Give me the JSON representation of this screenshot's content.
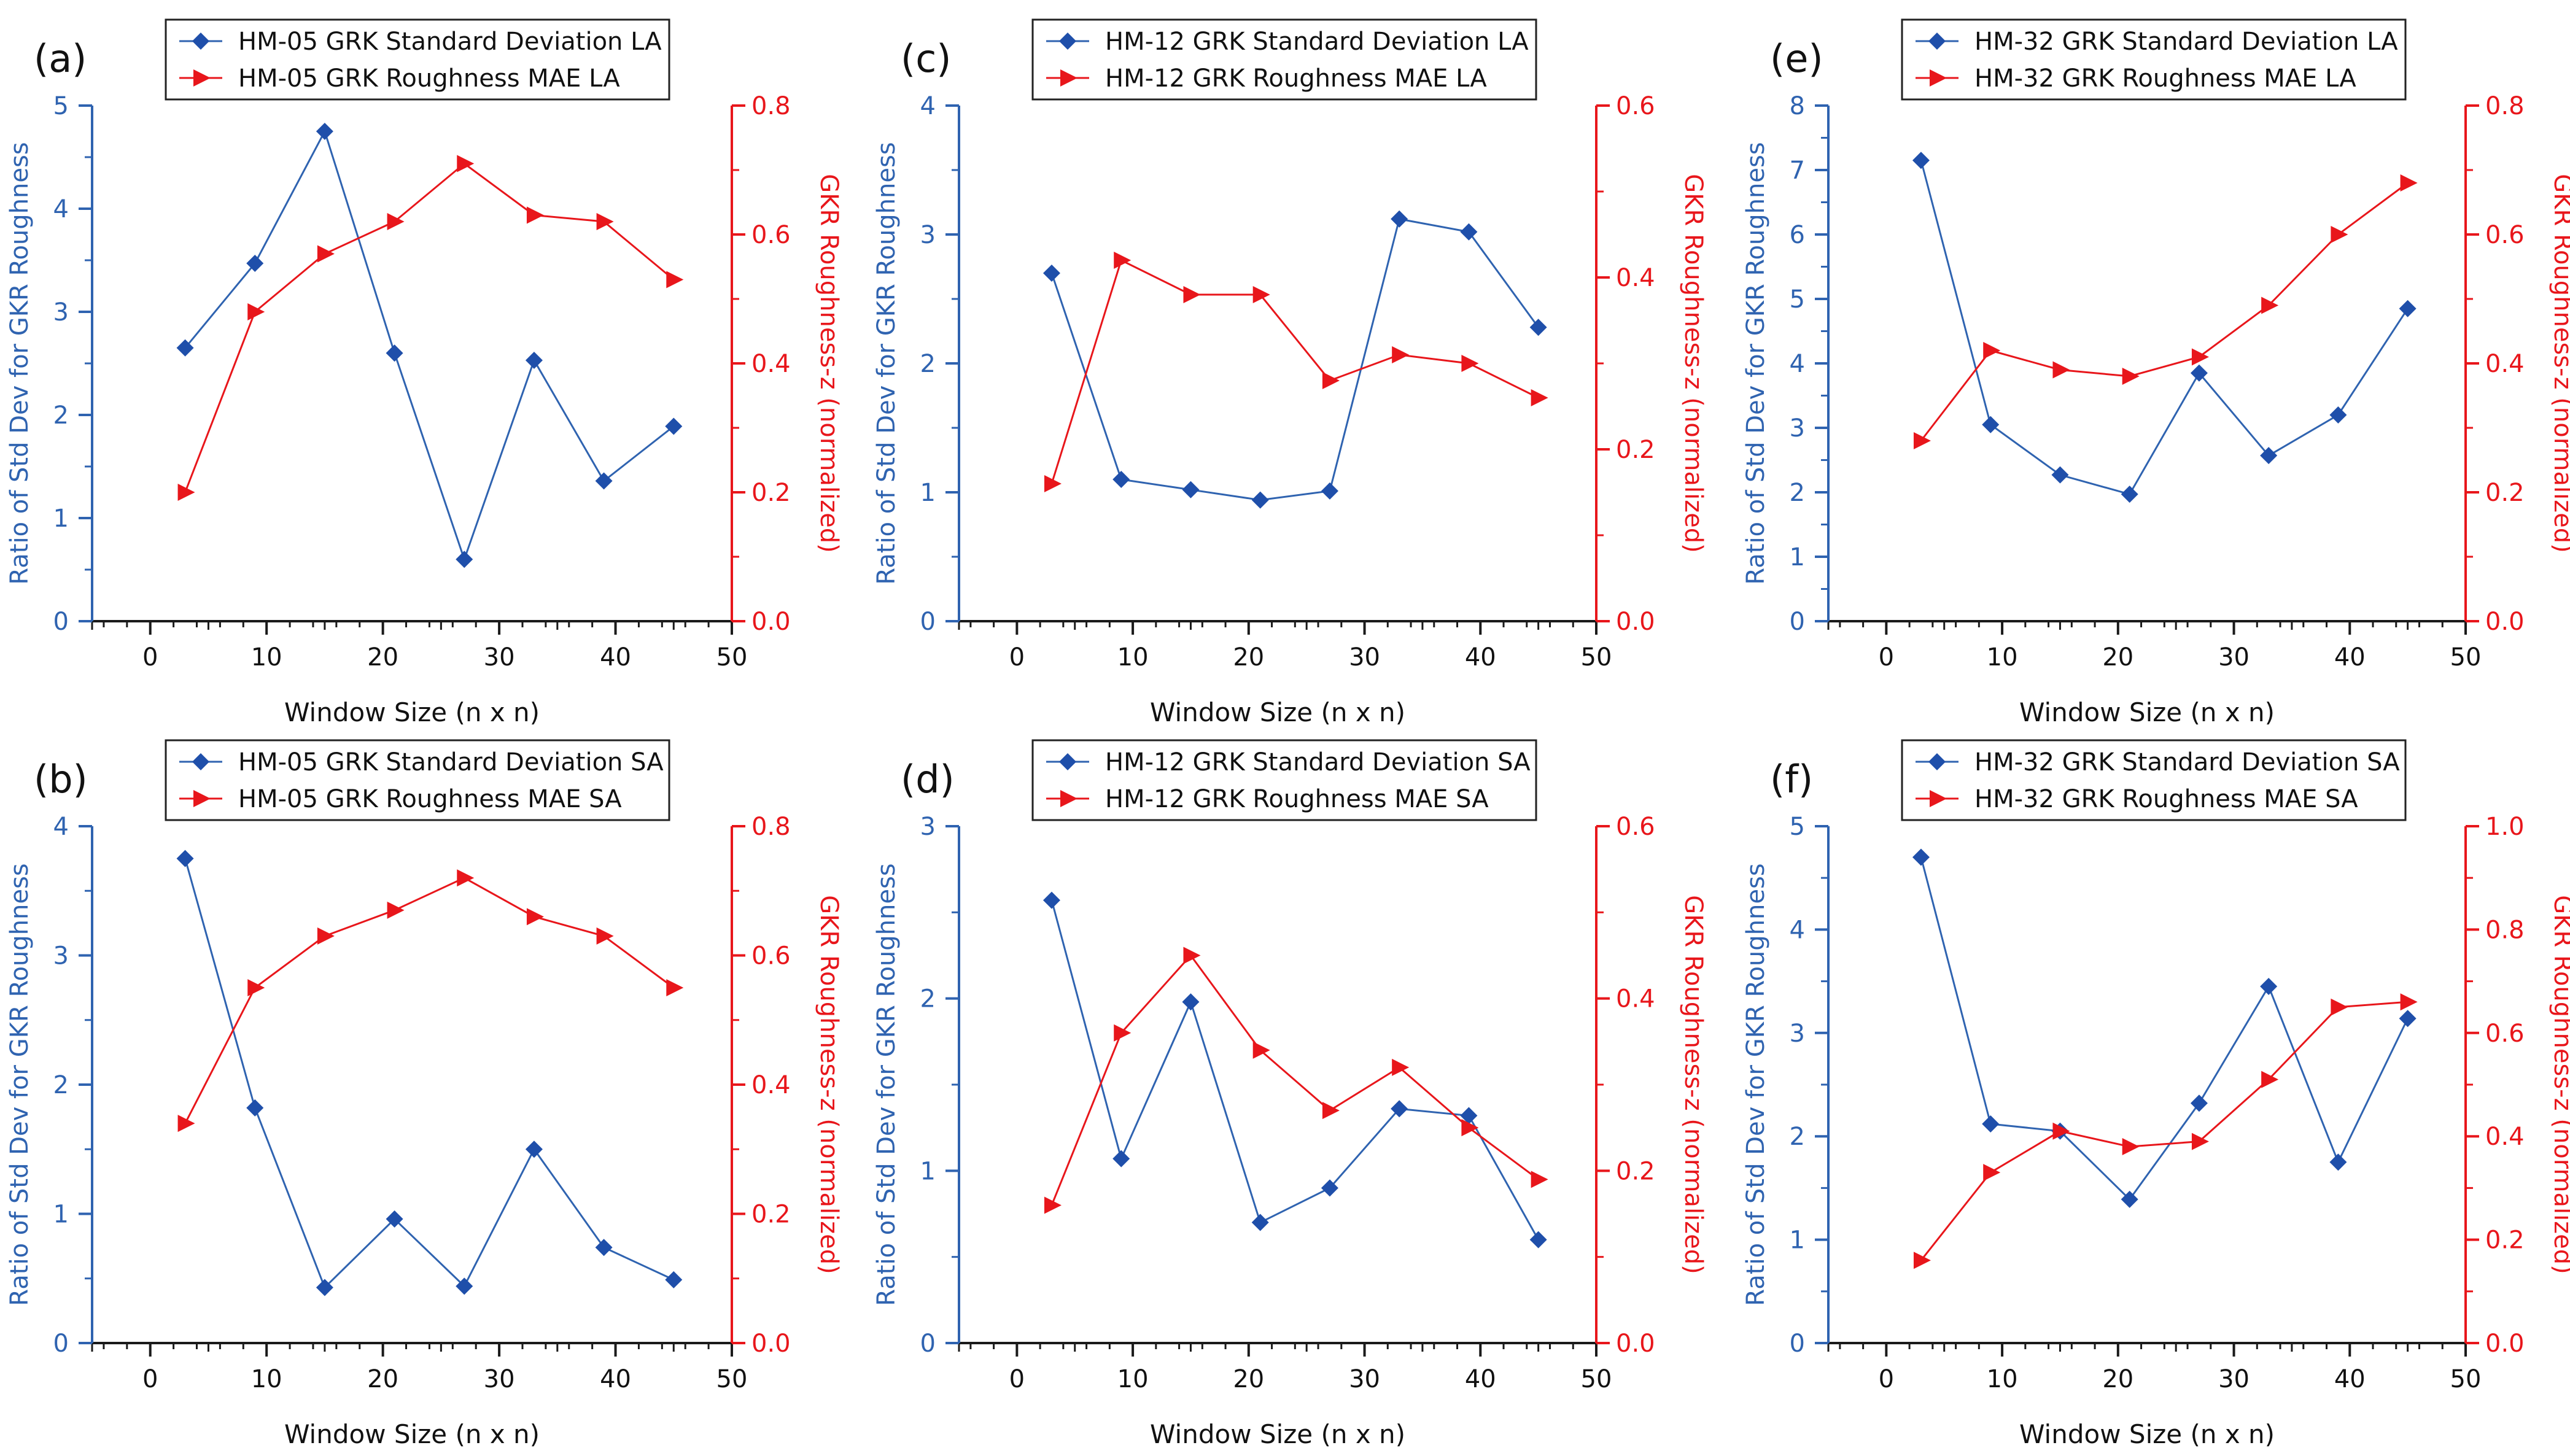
{
  "colors": {
    "left": "#2F63B0",
    "right": "#E8161B",
    "axis": "#1a1a1a",
    "marker_left": "#1F4FAA"
  },
  "chart_data": [
    {
      "id": "a",
      "type": "line",
      "panel_label": "(a)",
      "xlabel": "Window Size (n x n)",
      "xlim": [
        -5,
        50
      ],
      "xticks": [
        0,
        10,
        20,
        30,
        40,
        50
      ],
      "ylabel_left": "Ratio of Std Dev for GKR Roughness",
      "ylim_left": [
        0,
        5
      ],
      "yticks_left": [
        0,
        1,
        2,
        3,
        4,
        5
      ],
      "ylabel_right": "GKR Roughness-z (normalized)",
      "ylim_right": [
        0,
        0.8
      ],
      "yticks_right": [
        "0.0",
        "0.2",
        "0.4",
        "0.6",
        "0.8"
      ],
      "x": [
        3,
        9,
        15,
        21,
        27,
        33,
        39,
        45
      ],
      "series": [
        {
          "name": "HM-05 GRK Standard Deviation LA",
          "axis": "left",
          "marker": "diamond",
          "values": [
            2.65,
            3.47,
            4.75,
            2.6,
            0.6,
            2.53,
            1.36,
            1.89
          ]
        },
        {
          "name": "HM-05 GRK Roughness MAE LA",
          "axis": "right",
          "marker": "triangle",
          "values": [
            0.2,
            0.48,
            0.57,
            0.62,
            0.71,
            0.63,
            0.62,
            0.53
          ]
        }
      ]
    },
    {
      "id": "b",
      "type": "line",
      "panel_label": "(b)",
      "xlabel": "Window Size (n x n)",
      "xlim": [
        -5,
        50
      ],
      "xticks": [
        0,
        10,
        20,
        30,
        40,
        50
      ],
      "ylabel_left": "Ratio of Std Dev for GKR Roughness",
      "ylim_left": [
        0,
        4
      ],
      "yticks_left": [
        0,
        1,
        2,
        3,
        4
      ],
      "ylabel_right": "GKR Roughness-z (normalized)",
      "ylim_right": [
        0,
        0.8
      ],
      "yticks_right": [
        "0.0",
        "0.2",
        "0.4",
        "0.6",
        "0.8"
      ],
      "x": [
        3,
        9,
        15,
        21,
        27,
        33,
        39,
        45
      ],
      "series": [
        {
          "name": "HM-05 GRK Standard Deviation SA",
          "axis": "left",
          "marker": "diamond",
          "values": [
            3.75,
            1.82,
            0.43,
            0.96,
            0.44,
            1.5,
            0.74,
            0.49
          ]
        },
        {
          "name": "HM-05 GRK Roughness MAE SA",
          "axis": "right",
          "marker": "triangle",
          "values": [
            0.34,
            0.55,
            0.63,
            0.67,
            0.72,
            0.66,
            0.63,
            0.55
          ]
        }
      ]
    },
    {
      "id": "c",
      "type": "line",
      "panel_label": "(c)",
      "xlabel": "Window Size (n x n)",
      "xlim": [
        -5,
        50
      ],
      "xticks": [
        0,
        10,
        20,
        30,
        40,
        50
      ],
      "ylabel_left": "Ratio of Std Dev for GKR Roughness",
      "ylim_left": [
        0,
        4
      ],
      "yticks_left": [
        0,
        1,
        2,
        3,
        4
      ],
      "ylabel_right": "GKR Roughness-z (normalized)",
      "ylim_right": [
        0,
        0.6
      ],
      "yticks_right": [
        "0.0",
        "0.2",
        "0.4",
        "0.6"
      ],
      "x": [
        3,
        9,
        15,
        21,
        27,
        33,
        39,
        45
      ],
      "series": [
        {
          "name": "HM-12 GRK Standard Deviation LA",
          "axis": "left",
          "marker": "diamond",
          "values": [
            2.7,
            1.1,
            1.02,
            0.94,
            1.01,
            3.12,
            3.02,
            2.28
          ]
        },
        {
          "name": "HM-12 GRK Roughness MAE LA",
          "axis": "right",
          "marker": "triangle",
          "values": [
            0.16,
            0.42,
            0.38,
            0.38,
            0.28,
            0.31,
            0.3,
            0.26
          ]
        }
      ]
    },
    {
      "id": "d",
      "type": "line",
      "panel_label": "(d)",
      "xlabel": "Window Size (n x n)",
      "xlim": [
        -5,
        50
      ],
      "xticks": [
        0,
        10,
        20,
        30,
        40,
        50
      ],
      "ylabel_left": "Ratio of Std Dev for GKR Roughness",
      "ylim_left": [
        0,
        3
      ],
      "yticks_left": [
        0,
        1,
        2,
        3
      ],
      "ylabel_right": "GKR Roughness-z (normalized)",
      "ylim_right": [
        0,
        0.6
      ],
      "yticks_right": [
        "0.0",
        "0.2",
        "0.4",
        "0.6"
      ],
      "x": [
        3,
        9,
        15,
        21,
        27,
        33,
        39,
        45
      ],
      "series": [
        {
          "name": "HM-12 GRK Standard Deviation SA",
          "axis": "left",
          "marker": "diamond",
          "values": [
            2.57,
            1.07,
            1.98,
            0.7,
            0.9,
            1.36,
            1.32,
            0.6
          ]
        },
        {
          "name": "HM-12 GRK Roughness MAE SA",
          "axis": "right",
          "marker": "triangle",
          "values": [
            0.16,
            0.36,
            0.45,
            0.34,
            0.27,
            0.32,
            0.25,
            0.19
          ]
        }
      ]
    },
    {
      "id": "e",
      "type": "line",
      "panel_label": "(e)",
      "xlabel": "Window Size (n x n)",
      "xlim": [
        -5,
        50
      ],
      "xticks": [
        0,
        10,
        20,
        30,
        40,
        50
      ],
      "ylabel_left": "Ratio of Std Dev for GKR Roughness",
      "ylim_left": [
        0,
        8
      ],
      "yticks_left": [
        0,
        1,
        2,
        3,
        4,
        5,
        6,
        7,
        8
      ],
      "ylabel_right": "GKR Roughness-z (normalized)",
      "ylim_right": [
        0,
        0.8
      ],
      "yticks_right": [
        "0.0",
        "0.2",
        "0.4",
        "0.6",
        "0.8"
      ],
      "x": [
        3,
        9,
        15,
        21,
        27,
        33,
        39,
        45
      ],
      "series": [
        {
          "name": "HM-32 GRK Standard Deviation LA",
          "axis": "left",
          "marker": "diamond",
          "values": [
            7.15,
            3.05,
            2.27,
            1.97,
            3.85,
            2.57,
            3.2,
            4.85
          ]
        },
        {
          "name": "HM-32 GRK Roughness MAE LA",
          "axis": "right",
          "marker": "triangle",
          "values": [
            0.28,
            0.42,
            0.39,
            0.38,
            0.41,
            0.49,
            0.6,
            0.68
          ]
        }
      ]
    },
    {
      "id": "f",
      "type": "line",
      "panel_label": "(f)",
      "xlabel": "Window Size (n x n)",
      "xlim": [
        -5,
        50
      ],
      "xticks": [
        0,
        10,
        20,
        30,
        40,
        50
      ],
      "ylabel_left": "Ratio of Std Dev for GKR Roughness",
      "ylim_left": [
        0,
        5
      ],
      "yticks_left": [
        0,
        1,
        2,
        3,
        4,
        5
      ],
      "ylabel_right": "GKR Roughness-z (normalized)",
      "ylim_right": [
        0,
        1.0
      ],
      "yticks_right": [
        "0.0",
        "0.2",
        "0.4",
        "0.6",
        "0.8",
        "1.0"
      ],
      "x": [
        3,
        9,
        15,
        21,
        27,
        33,
        39,
        45
      ],
      "series": [
        {
          "name": "HM-32 GRK Standard Deviation SA",
          "axis": "left",
          "marker": "diamond",
          "values": [
            4.7,
            2.12,
            2.05,
            1.39,
            2.32,
            3.45,
            1.75,
            3.14
          ]
        },
        {
          "name": "HM-32 GRK Roughness MAE SA",
          "axis": "right",
          "marker": "triangle",
          "values": [
            0.16,
            0.33,
            0.41,
            0.38,
            0.39,
            0.51,
            0.65,
            0.66
          ]
        }
      ]
    }
  ]
}
